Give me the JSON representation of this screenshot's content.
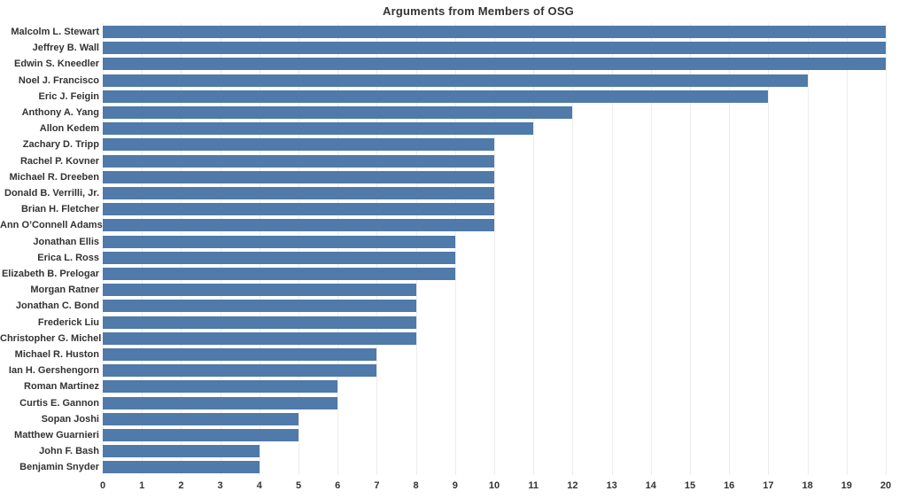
{
  "chart": {
    "title": "Arguments from Members of OSG"
  },
  "chart_data": {
    "type": "bar",
    "orientation": "horizontal",
    "title": "Arguments from Members of OSG",
    "categories": [
      "Malcolm L. Stewart",
      "Jeffrey B. Wall",
      "Edwin S. Kneedler",
      "Noel J. Francisco",
      "Eric J. Feigin",
      "Anthony A. Yang",
      "Allon Kedem",
      "Zachary D. Tripp",
      "Rachel P. Kovner",
      "Michael R. Dreeben",
      "Donald B. Verrilli, Jr.",
      "Brian H. Fletcher",
      "Ann O’Connell Adams",
      "Jonathan Ellis",
      "Erica L. Ross",
      "Elizabeth B. Prelogar",
      "Morgan Ratner",
      "Jonathan C. Bond",
      "Frederick Liu",
      "Christopher G. Michel",
      "Michael R. Huston",
      "Ian H. Gershengorn",
      "Roman Martinez",
      "Curtis E. Gannon",
      "Sopan Joshi",
      "Matthew Guarnieri",
      "John F. Bash",
      "Benjamin Snyder"
    ],
    "values": [
      20,
      20,
      20,
      18,
      17,
      12,
      11,
      10,
      10,
      10,
      10,
      10,
      10,
      9,
      9,
      9,
      8,
      8,
      8,
      8,
      7,
      7,
      6,
      6,
      5,
      5,
      4,
      4
    ],
    "xlabel": "",
    "ylabel": "",
    "xlim": [
      0,
      20
    ],
    "xticks": [
      0,
      1,
      2,
      3,
      4,
      5,
      6,
      7,
      8,
      9,
      10,
      11,
      12,
      13,
      14,
      15,
      16,
      17,
      18,
      19,
      20
    ],
    "grid": true,
    "legend": false,
    "colors": {
      "bar": "#4f7aa9",
      "gridline": "#ececec",
      "text": "#333333",
      "background": "#ffffff"
    }
  }
}
